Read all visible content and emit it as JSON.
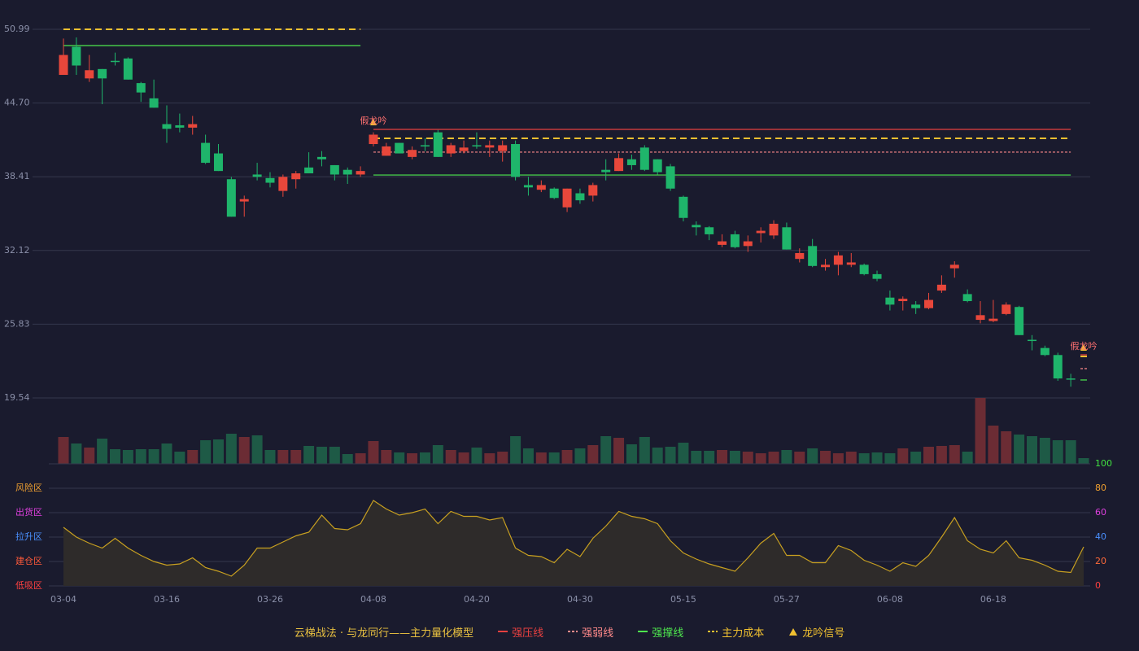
{
  "chart_data": [
    {
      "type": "candlestick",
      "categories": [
        "03-04",
        null,
        null,
        null,
        null,
        null,
        null,
        null,
        "03-16",
        null,
        null,
        null,
        null,
        null,
        null,
        null,
        "03-26",
        null,
        null,
        null,
        null,
        null,
        null,
        null,
        "04-08",
        null,
        null,
        null,
        null,
        null,
        null,
        null,
        "04-20",
        null,
        null,
        null,
        null,
        null,
        null,
        null,
        "04-30",
        null,
        null,
        null,
        null,
        null,
        null,
        null,
        "05-15",
        null,
        null,
        null,
        null,
        null,
        null,
        null,
        "05-27",
        null,
        null,
        null,
        null,
        null,
        null,
        null,
        "06-08",
        null,
        null,
        null,
        null,
        null,
        null,
        null,
        "06-18",
        null,
        null,
        null,
        null,
        null,
        null,
        null
      ],
      "open": [
        47.1,
        49.5,
        46.8,
        47.6,
        48.3,
        48.5,
        46.4,
        45.1,
        42.9,
        42.8,
        42.6,
        41.3,
        40.4,
        38.2,
        36.3,
        38.6,
        38.3,
        37.2,
        38.2,
        39.2,
        40.1,
        39.4,
        39.0,
        38.6,
        41.2,
        40.2,
        41.3,
        40.1,
        41.1,
        42.2,
        40.4,
        40.6,
        41.1,
        40.9,
        40.6,
        41.2,
        37.7,
        37.3,
        37.4,
        35.8,
        37.0,
        36.8,
        39.0,
        38.9,
        39.9,
        40.9,
        39.9,
        39.3,
        36.7,
        34.3,
        34.1,
        32.6,
        33.5,
        32.5,
        33.6,
        33.4,
        34.1,
        31.4,
        32.5,
        30.7,
        30.9,
        30.9,
        30.9,
        30.1,
        28.1,
        27.8,
        27.5,
        27.2,
        28.7,
        30.6,
        28.4,
        26.2,
        26.1,
        26.7,
        27.3,
        24.5,
        23.8,
        23.2,
        21.2,
        null
      ],
      "high": [
        50.2,
        50.3,
        48.8,
        47.6,
        49.0,
        48.6,
        46.5,
        46.7,
        44.5,
        43.8,
        43.6,
        42.0,
        41.2,
        38.4,
        36.8,
        39.6,
        38.8,
        38.6,
        38.9,
        40.5,
        40.6,
        39.4,
        39.2,
        39.3,
        42.2,
        41.3,
        41.3,
        41.0,
        41.7,
        42.4,
        41.3,
        41.5,
        42.2,
        41.5,
        41.5,
        41.5,
        38.4,
        38.1,
        37.5,
        37.4,
        37.4,
        37.9,
        39.9,
        40.4,
        40.3,
        41.1,
        39.9,
        39.5,
        36.8,
        34.6,
        34.2,
        33.5,
        33.8,
        33.4,
        34.1,
        34.7,
        34.5,
        32.3,
        33.1,
        31.4,
        32.0,
        31.9,
        31.0,
        30.4,
        28.7,
        28.2,
        27.8,
        28.5,
        30.0,
        31.2,
        28.8,
        27.8,
        27.9,
        27.7,
        27.4,
        24.9,
        24.0,
        23.4,
        21.6,
        null
      ],
      "low": [
        47.1,
        47.1,
        46.5,
        44.6,
        47.9,
        46.7,
        44.8,
        44.3,
        41.3,
        42.2,
        42.0,
        39.5,
        38.9,
        35.0,
        35.0,
        38.1,
        37.5,
        36.7,
        37.4,
        38.7,
        39.3,
        38.1,
        37.8,
        38.4,
        41.0,
        40.2,
        40.4,
        39.9,
        40.6,
        40.1,
        40.1,
        40.4,
        40.8,
        40.1,
        39.7,
        38.1,
        36.8,
        37.1,
        36.5,
        35.4,
        36.1,
        36.3,
        38.1,
        38.9,
        39.0,
        38.9,
        38.6,
        37.2,
        34.6,
        33.4,
        33.0,
        32.4,
        32.3,
        32.0,
        32.8,
        33.1,
        32.2,
        31.1,
        30.7,
        30.4,
        30.0,
        30.7,
        30.0,
        29.5,
        27.0,
        27.0,
        26.7,
        27.1,
        28.5,
        29.8,
        27.7,
        25.9,
        26.0,
        26.6,
        24.9,
        23.6,
        23.1,
        21.0,
        20.5,
        null
      ],
      "close": [
        48.8,
        47.9,
        47.5,
        46.8,
        48.2,
        46.7,
        45.6,
        44.3,
        42.5,
        42.6,
        42.9,
        39.6,
        38.9,
        35.0,
        36.5,
        38.4,
        37.9,
        38.4,
        38.7,
        38.7,
        39.9,
        38.6,
        38.6,
        38.9,
        42.0,
        41.0,
        40.4,
        40.7,
        41.0,
        40.1,
        41.1,
        40.9,
        41.0,
        41.1,
        41.1,
        38.4,
        37.5,
        37.7,
        36.6,
        37.4,
        36.4,
        37.7,
        38.8,
        40.0,
        39.4,
        39.0,
        38.8,
        37.4,
        34.9,
        34.1,
        33.5,
        32.9,
        32.4,
        32.9,
        33.8,
        34.4,
        32.2,
        31.9,
        30.8,
        30.9,
        31.7,
        31.1,
        30.1,
        29.7,
        27.5,
        28.0,
        27.2,
        27.9,
        29.2,
        30.9,
        27.8,
        26.6,
        26.3,
        27.5,
        24.9,
        24.4,
        23.2,
        21.2,
        21.1,
        null
      ],
      "up_color": "#e8473b",
      "down_color": "#1fb56b",
      "ylim": [
        19.54,
        50.99
      ],
      "yticks": [
        50.99,
        {
          "value": 44.7,
          "label": "44.70"
        },
        38.41,
        32.12,
        25.83,
        19.54
      ],
      "grid": true,
      "levels": [
        {
          "name": "强压线",
          "color": "#e84040",
          "style": "solid",
          "values": [
            null,
            null,
            null,
            null,
            null,
            null,
            null,
            null,
            null,
            null,
            null,
            null,
            null,
            null,
            null,
            null,
            null,
            null,
            null,
            null,
            null,
            null,
            null,
            null,
            42.45,
            42.45,
            42.45,
            42.45,
            42.45,
            42.45,
            42.45,
            42.45,
            42.45,
            42.45,
            42.45,
            42.45,
            42.45,
            42.45,
            42.45,
            42.45,
            42.45,
            42.45,
            42.45,
            42.45,
            42.45,
            42.45,
            42.45,
            42.45,
            42.45,
            42.45,
            42.45,
            42.45,
            42.45,
            42.45,
            42.45,
            42.45,
            42.45,
            42.45,
            42.45,
            42.45,
            42.45,
            42.45,
            42.45,
            42.45,
            42.45,
            42.45,
            42.45,
            42.45,
            42.45,
            42.45,
            42.45,
            42.45,
            42.45,
            42.45,
            42.45,
            42.45,
            42.45,
            42.45,
            42.45,
            23.22
          ]
        },
        {
          "name": "强弱线",
          "color": "#ff8a8a",
          "style": "dotted",
          "values": [
            null,
            null,
            null,
            null,
            null,
            null,
            null,
            null,
            null,
            null,
            null,
            null,
            null,
            null,
            null,
            null,
            null,
            null,
            null,
            null,
            null,
            null,
            null,
            null,
            40.51,
            40.51,
            40.51,
            40.51,
            40.51,
            40.51,
            40.51,
            40.51,
            40.51,
            40.51,
            40.51,
            40.51,
            40.51,
            40.51,
            40.51,
            40.51,
            40.51,
            40.51,
            40.51,
            40.51,
            40.51,
            40.51,
            40.51,
            40.51,
            40.51,
            40.51,
            40.51,
            40.51,
            40.51,
            40.51,
            40.51,
            40.51,
            40.51,
            40.51,
            40.51,
            40.51,
            40.51,
            40.51,
            40.51,
            40.51,
            40.51,
            40.51,
            40.51,
            40.51,
            40.51,
            40.51,
            40.51,
            40.51,
            40.51,
            40.51,
            40.51,
            40.51,
            40.51,
            40.51,
            40.51,
            22.04
          ]
        },
        {
          "name": "强撑线",
          "color": "#4ee84e",
          "style": "solid",
          "values": [
            49.6,
            49.6,
            49.6,
            49.6,
            49.6,
            49.6,
            49.6,
            49.6,
            49.6,
            49.6,
            49.6,
            49.6,
            49.6,
            49.6,
            49.6,
            49.6,
            49.6,
            49.6,
            49.6,
            49.6,
            49.6,
            49.6,
            49.6,
            49.6,
            38.56,
            38.56,
            38.56,
            38.56,
            38.56,
            38.56,
            38.56,
            38.56,
            38.56,
            38.56,
            38.56,
            38.56,
            38.56,
            38.56,
            38.56,
            38.56,
            38.56,
            38.56,
            38.56,
            38.56,
            38.56,
            38.56,
            38.56,
            38.56,
            38.56,
            38.56,
            38.56,
            38.56,
            38.56,
            38.56,
            38.56,
            38.56,
            38.56,
            38.56,
            38.56,
            38.56,
            38.56,
            38.56,
            38.56,
            38.56,
            38.56,
            38.56,
            38.56,
            38.56,
            38.56,
            38.56,
            38.56,
            38.56,
            38.56,
            38.56,
            38.56,
            38.56,
            38.56,
            38.56,
            38.56,
            21.07
          ]
        },
        {
          "name": "主力成本",
          "color": "#f0c030",
          "style": "dashed",
          "values": [
            50.99,
            50.99,
            50.99,
            50.99,
            50.99,
            50.99,
            50.99,
            50.99,
            50.99,
            50.99,
            50.99,
            50.99,
            50.99,
            50.99,
            50.99,
            50.99,
            50.99,
            50.99,
            50.99,
            50.99,
            50.99,
            50.99,
            50.99,
            50.99,
            41.69,
            41.69,
            41.69,
            41.69,
            41.69,
            41.69,
            41.69,
            41.69,
            41.69,
            41.69,
            41.69,
            41.69,
            41.69,
            41.69,
            41.69,
            41.69,
            41.69,
            41.69,
            41.69,
            41.69,
            41.69,
            41.69,
            41.69,
            41.69,
            41.69,
            41.69,
            41.69,
            41.69,
            41.69,
            41.69,
            41.69,
            41.69,
            41.69,
            41.69,
            41.69,
            41.69,
            41.69,
            41.69,
            41.69,
            41.69,
            41.69,
            41.69,
            41.69,
            41.69,
            41.69,
            41.69,
            41.69,
            41.69,
            41.69,
            41.69,
            41.69,
            41.69,
            41.69,
            41.69,
            41.69,
            23.08
          ]
        }
      ],
      "signal": {
        "name": "龙吟信号",
        "color": "#f0c030",
        "label_color": "#ff7070",
        "annotations": [
          {
            "text": "假龙吟",
            "index": 24
          },
          {
            "text": "假龙吟",
            "index": 79
          }
        ]
      }
    },
    {
      "type": "volume",
      "values": [
        33,
        25,
        20,
        31,
        18,
        17,
        18,
        18,
        25,
        15,
        17,
        29,
        30,
        37,
        33,
        35,
        17,
        17,
        17,
        22,
        21,
        21,
        12,
        13,
        28,
        17,
        14,
        13,
        14,
        23,
        17,
        14,
        20,
        13,
        15,
        34,
        19,
        14,
        14,
        17,
        19,
        23,
        34,
        32,
        24,
        33,
        20,
        21,
        26,
        16,
        16,
        17,
        16,
        15,
        13,
        15,
        17,
        15,
        19,
        16,
        13,
        15,
        13,
        14,
        13,
        19,
        15,
        21,
        22,
        23,
        15,
        81,
        47,
        40,
        36,
        34,
        32,
        29,
        29,
        7
      ],
      "up_color": "#6b2c34",
      "down_color": "#1e5a46"
    },
    {
      "type": "area",
      "values": [
        48,
        40,
        35,
        31,
        39,
        31,
        25,
        20,
        17,
        18,
        23,
        15,
        12,
        8,
        17,
        31,
        31,
        36,
        41,
        44,
        58,
        47,
        46,
        51,
        70,
        63,
        58,
        60,
        63,
        51,
        61,
        57,
        57,
        54,
        56,
        31,
        25,
        24,
        19,
        30,
        24,
        39,
        49,
        61,
        57,
        55,
        51,
        37,
        27,
        22,
        18,
        15,
        12,
        23,
        35,
        43,
        25,
        25,
        19,
        19,
        33,
        29,
        21,
        17,
        12,
        19,
        16,
        25,
        40,
        56,
        37,
        30,
        27,
        37,
        23,
        21,
        17,
        12,
        11,
        32
      ],
      "color": "#c8a020",
      "fill": "#2e2b2a",
      "ylim": [
        0,
        100
      ],
      "yticks": [
        0,
        20,
        40,
        60,
        80,
        100
      ],
      "ytick_colors": [
        "#ff4040",
        "#ff6a3a",
        "#4a90ff",
        "#e040e0",
        "#f0a030",
        "#40e040"
      ],
      "zones": [
        {
          "label": "风险区",
          "value": 80,
          "color": "#f0a030"
        },
        {
          "label": "出货区",
          "value": 60,
          "color": "#e040e0"
        },
        {
          "label": "拉升区",
          "value": 40,
          "color": "#4a90ff"
        },
        {
          "label": "建仓区",
          "value": 20,
          "color": "#ff5a3a"
        },
        {
          "label": "低吸区",
          "value": 0,
          "color": "#ff4040"
        }
      ]
    }
  ],
  "legend": {
    "title": "云梯战法 · 与龙同行——主力量化模型",
    "title_color": "#e8c040"
  }
}
